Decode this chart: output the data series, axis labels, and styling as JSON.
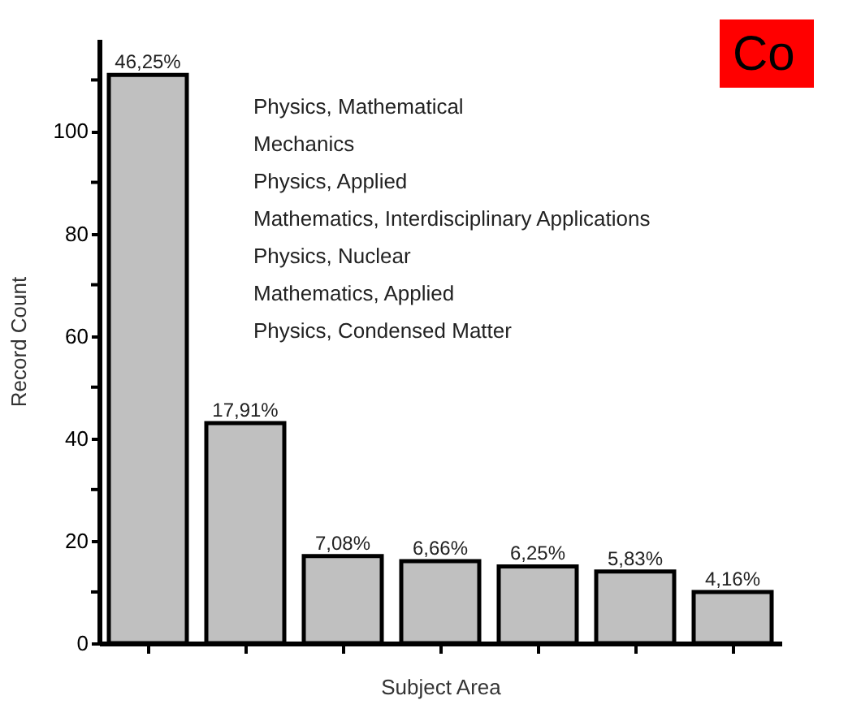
{
  "chart_data": {
    "type": "bar",
    "xlabel": "Subject Area",
    "ylabel": "Record Count",
    "categories": [
      null,
      null,
      null,
      null,
      null,
      null,
      null
    ],
    "values": [
      111,
      43,
      17,
      16,
      15,
      14,
      10
    ],
    "color": "#c0c0c0",
    "ylim": [
      0,
      118
    ],
    "yticks": [
      0,
      {
        "value": 10,
        "label": null
      },
      20,
      {
        "value": 30,
        "label": null
      },
      40,
      {
        "value": 50,
        "label": null
      },
      60,
      {
        "value": 70,
        "label": null
      },
      80,
      {
        "value": 90,
        "label": null
      },
      100,
      {
        "value": 110,
        "label": null
      }
    ],
    "grid": false,
    "annotations": [
      {
        "text": "46,25%",
        "y": 111
      },
      {
        "text": "17,91%",
        "y": 43
      },
      {
        "text": "7,08%",
        "y": 17
      },
      {
        "text": "6,66%",
        "y": 16
      },
      {
        "text": "6,25%",
        "y": 15
      },
      {
        "text": "5,83%",
        "y": 14
      },
      {
        "text": "4,16%",
        "y": 10
      },
      "Physics, Mathematical",
      "Mechanics",
      "Physics, Applied",
      "Mathematics, Interdisciplinary Applications",
      "Physics, Nuclear",
      "Mathematics, Applied",
      "Physics, Condensed Matter",
      "Co"
    ]
  }
}
